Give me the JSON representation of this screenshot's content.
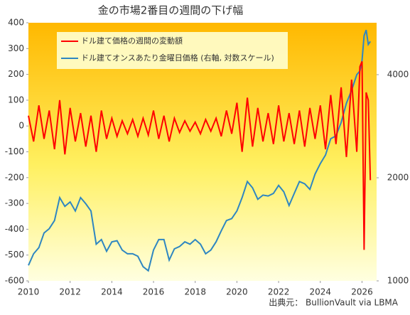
{
  "chart_data": {
    "type": "line",
    "title": "金の市場2番目の週間の下げ幅",
    "source": "出典元： BullionVault  via LBMA",
    "x": [
      2010,
      2010.25,
      2010.5,
      2010.75,
      2011,
      2011.25,
      2011.5,
      2011.75,
      2012,
      2012.25,
      2012.5,
      2012.75,
      2013,
      2013.25,
      2013.5,
      2013.75,
      2014,
      2014.25,
      2014.5,
      2014.75,
      2015,
      2015.25,
      2015.5,
      2015.75,
      2016,
      2016.25,
      2016.5,
      2016.75,
      2017,
      2017.25,
      2017.5,
      2017.75,
      2018,
      2018.25,
      2018.5,
      2018.75,
      2019,
      2019.25,
      2019.5,
      2019.75,
      2020,
      2020.25,
      2020.5,
      2020.75,
      2021,
      2021.25,
      2021.5,
      2021.75,
      2022,
      2022.25,
      2022.5,
      2022.75,
      2023,
      2023.25,
      2023.5,
      2023.75,
      2024,
      2024.25,
      2024.5,
      2024.75,
      2025,
      2025.25,
      2025.5,
      2025.75,
      2025.9,
      2026,
      2026.1,
      2026.2,
      2026.3,
      2026.4
    ],
    "series": [
      {
        "name": "ドル建て価格の週間の変動額",
        "color": "#ff0000",
        "values": [
          40,
          -60,
          80,
          -50,
          60,
          -90,
          100,
          -110,
          70,
          -60,
          50,
          -80,
          40,
          -100,
          60,
          -50,
          30,
          -40,
          20,
          -30,
          25,
          -40,
          30,
          -35,
          60,
          -50,
          40,
          -60,
          30,
          -25,
          20,
          -20,
          15,
          -30,
          25,
          -20,
          30,
          -40,
          60,
          -30,
          90,
          -100,
          110,
          -80,
          70,
          -60,
          50,
          -70,
          80,
          -60,
          50,
          -70,
          60,
          -80,
          70,
          -50,
          80,
          -90,
          120,
          -70,
          150,
          -120,
          180,
          -100,
          230,
          250,
          -480,
          130,
          100,
          -210
        ]
      },
      {
        "name": "ドル建てオンスあたり金曜日価格 (右軸, 対数スケール)",
        "color": "#2e86c1",
        "axis": "y2",
        "values": [
          1110,
          1200,
          1250,
          1380,
          1420,
          1500,
          1750,
          1650,
          1700,
          1600,
          1750,
          1680,
          1600,
          1280,
          1320,
          1220,
          1300,
          1310,
          1230,
          1200,
          1200,
          1180,
          1100,
          1070,
          1230,
          1320,
          1320,
          1150,
          1240,
          1260,
          1300,
          1280,
          1320,
          1280,
          1200,
          1230,
          1300,
          1400,
          1500,
          1520,
          1600,
          1750,
          1950,
          1870,
          1730,
          1780,
          1770,
          1800,
          1900,
          1820,
          1660,
          1800,
          1950,
          1920,
          1850,
          2050,
          2200,
          2330,
          2600,
          2650,
          2900,
          3300,
          3600,
          4000,
          4100,
          4400,
          5200,
          5400,
          4900,
          5000
        ]
      }
    ],
    "xlim": [
      2010,
      2026.7
    ],
    "xticks": [
      2010,
      2012,
      2014,
      2016,
      2018,
      2020,
      2022,
      2024,
      2026
    ],
    "ylim": [
      -600,
      400
    ],
    "yticks": [
      -600,
      -500,
      -400,
      -300,
      -200,
      -100,
      0,
      100,
      200,
      300,
      400
    ],
    "y2lim": [
      1000,
      5670
    ],
    "y2ticks": [
      1000,
      2000,
      4000
    ],
    "y2log": true
  }
}
